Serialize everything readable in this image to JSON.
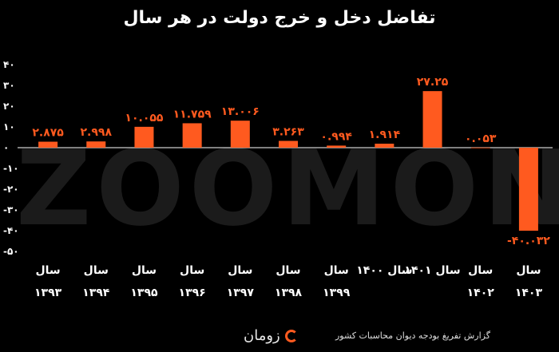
{
  "chart_data": {
    "type": "bar",
    "title": "تفاضل دخل و خرج دولت در هر سال",
    "categories": [
      [
        "سال",
        "۱۳۹۳"
      ],
      [
        "سال",
        "۱۳۹۴"
      ],
      [
        "سال",
        "۱۳۹۵"
      ],
      [
        "سال",
        "۱۳۹۶"
      ],
      [
        "سال",
        "۱۳۹۷"
      ],
      [
        "سال",
        "۱۳۹۸"
      ],
      [
        "سال",
        "۱۳۹۹"
      ],
      [
        "سال ۱۴۰۰"
      ],
      [
        "سال ۱۴۰۱"
      ],
      [
        "سال",
        "۱۴۰۲"
      ],
      [
        "سال",
        "۱۴۰۳"
      ]
    ],
    "values": [
      2.875,
      2.998,
      10.055,
      11.759,
      13.006,
      3.263,
      0.994,
      1.914,
      27.25,
      0.053,
      -40.032
    ],
    "data_labels": [
      "۲.۸۷۵",
      "۲.۹۹۸",
      "۱۰.۰۵۵",
      "۱۱.۷۵۹",
      "۱۳.۰۰۶",
      "۳.۲۶۳",
      "۰.۹۹۴",
      "۱.۹۱۴",
      "۲۷.۲۵",
      "۰.۰۵۳",
      "-۴۰.۰۳۲"
    ],
    "yticks": [
      40,
      30,
      20,
      10,
      0,
      -10,
      -20,
      -30,
      -40,
      -50
    ],
    "ytick_labels": [
      "۴۰",
      "۳۰",
      "۲۰",
      "۱۰",
      "۰",
      "-۱۰",
      "-۲۰",
      "-۳۰",
      "-۴۰",
      "-۵۰"
    ],
    "ylim": [
      -50,
      40
    ],
    "xlabel": "",
    "ylabel": "",
    "grid": false,
    "colors": {
      "bar": "#ff5a1f",
      "background": "#000000",
      "text": "#ffffff",
      "axis": "#ffffff"
    }
  },
  "source": "گزارش تفریغ بودجه دیوان محاسبات کشور",
  "brand": {
    "name": "زومان",
    "icon": "zoomon-logo-icon"
  },
  "watermark": "ZOOMON"
}
